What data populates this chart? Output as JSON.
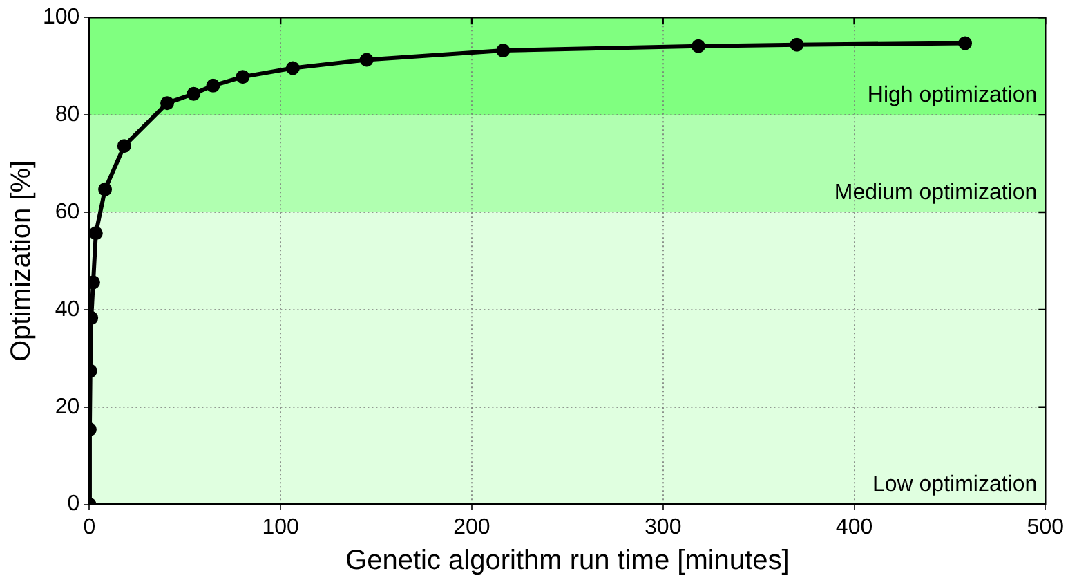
{
  "chart_data": {
    "type": "line",
    "xlabel": "Genetic algorithm run time [minutes]",
    "ylabel": "Optimization [%]",
    "x": [
      0,
      0.2,
      0.5,
      1,
      2,
      3.4,
      8.2,
      18.2,
      40.7,
      54.5,
      64.7,
      80.2,
      106.4,
      145,
      216.4,
      318.5,
      370,
      458
    ],
    "series": [
      {
        "color": "#000000",
        "values": [
          0,
          15.4,
          27.4,
          38.3,
          45.6,
          55.7,
          64.7,
          73.6,
          82.4,
          84.3,
          86.0,
          87.8,
          89.6,
          91.3,
          93.2,
          94.1,
          94.4,
          94.7
        ]
      }
    ],
    "xlim": [
      0,
      500
    ],
    "xticks": [
      0,
      100,
      200,
      300,
      400,
      500
    ],
    "ylim": [
      0,
      100
    ],
    "yticks": [
      0,
      20,
      40,
      60,
      80,
      100
    ],
    "bands": [
      {
        "axis": "y",
        "from": 0,
        "to": 60,
        "label": "Low optimization",
        "color": "#e0ffe0"
      },
      {
        "axis": "y",
        "from": 60,
        "to": 80,
        "label": "Medium optimization",
        "color": "#b0ffb0"
      },
      {
        "axis": "y",
        "from": 80,
        "to": 100,
        "label": "High optimization",
        "color": "#80ff80"
      }
    ],
    "grid": true,
    "legend": false,
    "marker": "circle",
    "line_style": "solid"
  }
}
